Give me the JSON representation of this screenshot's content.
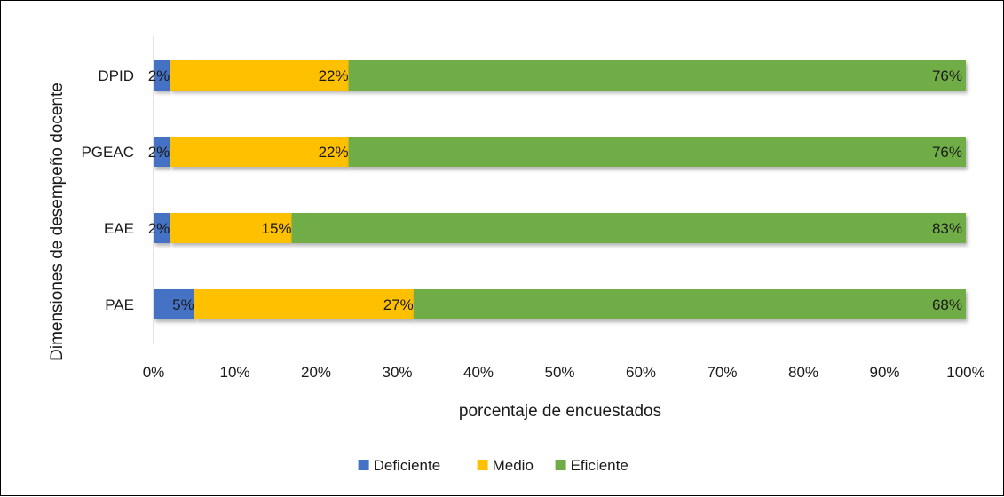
{
  "chart_data": {
    "type": "bar",
    "orientation": "horizontal",
    "stacked": true,
    "title": "",
    "xlabel": "porcentaje de encuestados",
    "ylabel": "Dimensiones de desempeño docente",
    "categories": [
      "DPID",
      "PGEAC",
      "EAE",
      "PAE"
    ],
    "series": [
      {
        "name": "Deficiente",
        "color": "#4472C4",
        "values": [
          2,
          2,
          2,
          5
        ]
      },
      {
        "name": "Medio",
        "color": "#FFC000",
        "values": [
          22,
          22,
          15,
          27
        ]
      },
      {
        "name": "Eficiente",
        "color": "#70AD47",
        "values": [
          76,
          76,
          83,
          68
        ]
      }
    ],
    "data_labels": {
      "Deficiente": [
        "2%",
        "2%",
        "2%",
        "5%"
      ],
      "Medio": [
        "22%",
        "22%",
        "15%",
        "27%"
      ],
      "Eficiente": [
        "76%",
        "76%",
        "83%",
        "68%"
      ]
    },
    "xlim": [
      0,
      100
    ],
    "x_ticks": [
      "0%",
      "10%",
      "20%",
      "30%",
      "40%",
      "50%",
      "60%",
      "70%",
      "80%",
      "90%",
      "100%"
    ],
    "grid": false,
    "legend_position": "bottom"
  }
}
